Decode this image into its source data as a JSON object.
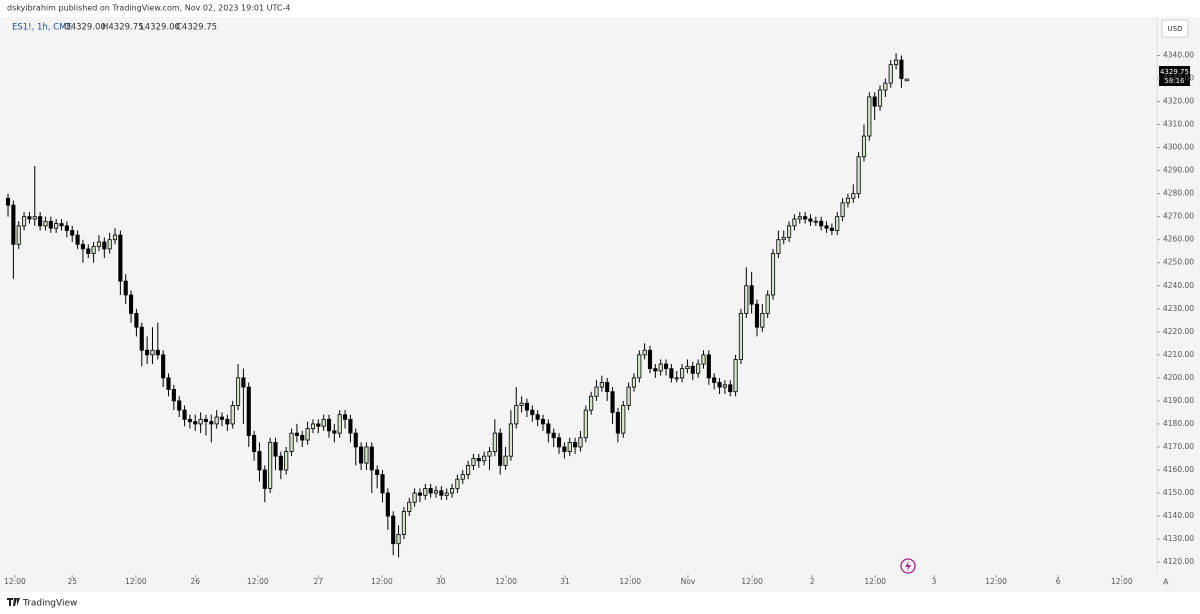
{
  "header": {
    "publisher": "dskyibrahim published on TradingView.com, Nov 02, 2023 19:01 UTC-4",
    "symbol": "ES1!, 1h, CME",
    "ohlc": [
      "O4329.00",
      "H4329.75",
      "L4329.00",
      "C4329.75"
    ],
    "currency": "USD",
    "price_tag": "4329.75",
    "countdown": "58:16"
  },
  "footer": {
    "brand": "TradingView"
  },
  "chart_data": {
    "type": "candlestick",
    "up_color": "#d3e6c7",
    "down_color": "#000000",
    "border_color": "#000000",
    "background": "#f4f4f4",
    "ylim": [
      4114.4,
      4356.7
    ],
    "yticks": [
      {
        "value": 4120,
        "label": "4120.00"
      },
      {
        "value": 4130,
        "label": "4130.00"
      },
      {
        "value": 4140,
        "label": "4140.00"
      },
      {
        "value": 4150,
        "label": "4150.00"
      },
      {
        "value": 4160,
        "label": "4160.00"
      },
      {
        "value": 4170,
        "label": "4170.00"
      },
      {
        "value": 4180,
        "label": "4180.00"
      },
      {
        "value": 4190,
        "label": "4190.00"
      },
      {
        "value": 4200,
        "label": "4200.00"
      },
      {
        "value": 4210,
        "label": "4210.00"
      },
      {
        "value": 4220,
        "label": "4220.00"
      },
      {
        "value": 4230,
        "label": "4230.00"
      },
      {
        "value": 4240,
        "label": "4240.00"
      },
      {
        "value": 4250,
        "label": "4250.00"
      },
      {
        "value": 4260,
        "label": "4260.00"
      },
      {
        "value": 4270,
        "label": "4270.00"
      },
      {
        "value": 4280,
        "label": "4280.00"
      },
      {
        "value": 4290,
        "label": "4290.00"
      },
      {
        "value": 4300,
        "label": "4300.00"
      },
      {
        "value": 4310,
        "label": "4310.00"
      },
      {
        "value": 4320,
        "label": "4320.00"
      },
      {
        "value": 4330,
        "label": "4330.00"
      },
      {
        "value": 4340,
        "label": "4340.00"
      }
    ],
    "xlim": [
      -1.5,
      214.4
    ],
    "xticks": [
      {
        "value": 1.3,
        "label": "12:00"
      },
      {
        "value": 12,
        "label": "25"
      },
      {
        "value": 23.9,
        "label": "12:00"
      },
      {
        "value": 35,
        "label": "26"
      },
      {
        "value": 46.7,
        "label": "12:00"
      },
      {
        "value": 58,
        "label": "27"
      },
      {
        "value": 69.9,
        "label": "12:00"
      },
      {
        "value": 80.9,
        "label": "30"
      },
      {
        "value": 93.1,
        "label": "12:00"
      },
      {
        "value": 104.1,
        "label": "31"
      },
      {
        "value": 116.3,
        "label": "12:00"
      },
      {
        "value": 127.1,
        "label": "Nov"
      },
      {
        "value": 139.1,
        "label": "12:00"
      },
      {
        "value": 150.3,
        "label": "2"
      },
      {
        "value": 162.1,
        "label": "12:00"
      },
      {
        "value": 173.1,
        "label": "3"
      },
      {
        "value": 184.7,
        "label": "12:00"
      },
      {
        "value": 196.3,
        "label": "6"
      },
      {
        "value": 208.2,
        "label": "12:00"
      }
    ],
    "open": [
      4278,
      4275,
      4258,
      4266,
      4270,
      4269,
      4270,
      4266,
      4268,
      4265,
      4267,
      4266,
      4264,
      4262,
      4258,
      4256,
      4254,
      4257,
      4259,
      4256,
      4260,
      4262,
      4242,
      4236,
      4228,
      4222,
      4212,
      4210,
      4212,
      4210,
      4200,
      4195,
      4190,
      4186,
      4182,
      4181,
      4180,
      4182,
      4181,
      4180,
      4183,
      4182,
      4180,
      4188,
      4200,
      4196,
      4175,
      4168,
      4160,
      4152,
      4172,
      4166,
      4160,
      4168,
      4176,
      4175,
      4173,
      4178,
      4180,
      4179,
      4182,
      4177,
      4176,
      4184,
      4182,
      4176,
      4170,
      4163,
      4170,
      4160,
      4158,
      4150,
      4140,
      4128,
      4132,
      4142,
      4146,
      4150,
      4149,
      4152,
      4150,
      4151,
      4149,
      4150,
      4152,
      4156,
      4158,
      4162,
      4165,
      4164,
      4166,
      4168,
      4176,
      4162,
      4166,
      4180,
      4188,
      4189,
      4186,
      4184,
      4182,
      4180,
      4176,
      4174,
      4170,
      4168,
      4172,
      4170,
      4174,
      4186,
      4192,
      4196,
      4198,
      4194,
      4185,
      4176,
      4188,
      4196,
      4200,
      4210,
      4212,
      4204,
      4203,
      4206,
      4204,
      4200,
      4200,
      4204,
      4205,
      4202,
      4206,
      4210,
      4200,
      4198,
      4196,
      4197,
      4194,
      4208,
      4228,
      4240,
      4232,
      4222,
      4228,
      4236,
      4254,
      4260,
      4261,
      4266,
      4269,
      4270,
      4269,
      4268,
      4268,
      4266,
      4265,
      4264,
      4270,
      4276,
      4278,
      4280,
      4296,
      4305,
      4322,
      4318,
      4325,
      4328,
      4336,
      4338,
      4329
    ],
    "high": [
      4280,
      4277,
      4268,
      4272,
      4272,
      4292,
      4272,
      4270,
      4270,
      4269,
      4269,
      4268,
      4266,
      4264,
      4260,
      4258,
      4259,
      4262,
      4261,
      4263,
      4265,
      4264,
      4245,
      4238,
      4230,
      4224,
      4218,
      4222,
      4224,
      4212,
      4202,
      4197,
      4192,
      4188,
      4184,
      4184,
      4185,
      4184,
      4184,
      4186,
      4185,
      4184,
      4190,
      4206,
      4204,
      4198,
      4177,
      4172,
      4162,
      4174,
      4174,
      4168,
      4170,
      4178,
      4180,
      4177,
      4181,
      4182,
      4182,
      4184,
      4184,
      4180,
      4186,
      4186,
      4184,
      4178,
      4172,
      4172,
      4172,
      4162,
      4160,
      4152,
      4142,
      4136,
      4144,
      4148,
      4152,
      4152,
      4154,
      4154,
      4153,
      4153,
      4152,
      4154,
      4158,
      4160,
      4164,
      4167,
      4167,
      4168,
      4170,
      4182,
      4178,
      4170,
      4186,
      4196,
      4192,
      4191,
      4188,
      4186,
      4184,
      4182,
      4178,
      4176,
      4172,
      4174,
      4174,
      4177,
      4188,
      4194,
      4199,
      4201,
      4200,
      4196,
      4187,
      4190,
      4198,
      4202,
      4212,
      4215,
      4214,
      4206,
      4208,
      4208,
      4206,
      4203,
      4206,
      4208,
      4207,
      4208,
      4212,
      4212,
      4202,
      4200,
      4199,
      4199,
      4210,
      4230,
      4248,
      4246,
      4234,
      4232,
      4238,
      4256,
      4264,
      4264,
      4268,
      4271,
      4272,
      4272,
      4271,
      4270,
      4270,
      4268,
      4267,
      4272,
      4278,
      4280,
      4284,
      4298,
      4310,
      4324,
      4324,
      4327,
      4330,
      4338,
      4341,
      4340,
      4329.75
    ],
    "low": [
      4270,
      4243,
      4256,
      4264,
      4267,
      4266,
      4264,
      4264,
      4263,
      4263,
      4264,
      4261,
      4259,
      4256,
      4250,
      4252,
      4250,
      4255,
      4252,
      4254,
      4258,
      4236,
      4232,
      4224,
      4218,
      4205,
      4206,
      4206,
      4208,
      4196,
      4192,
      4186,
      4183,
      4179,
      4178,
      4177,
      4176,
      4175,
      4172,
      4178,
      4179,
      4177,
      4178,
      4186,
      4180,
      4170,
      4164,
      4155,
      4146,
      4150,
      4160,
      4156,
      4158,
      4166,
      4172,
      4170,
      4171,
      4176,
      4176,
      4177,
      4174,
      4172,
      4174,
      4178,
      4172,
      4162,
      4160,
      4160,
      4150,
      4152,
      4146,
      4134,
      4123,
      4122,
      4130,
      4140,
      4144,
      4146,
      4147,
      4148,
      4148,
      4147,
      4147,
      4148,
      4150,
      4154,
      4156,
      4160,
      4161,
      4162,
      4160,
      4166,
      4158,
      4160,
      4164,
      4178,
      4185,
      4183,
      4181,
      4179,
      4177,
      4172,
      4170,
      4167,
      4165,
      4166,
      4167,
      4168,
      4172,
      4184,
      4190,
      4194,
      4190,
      4180,
      4172,
      4174,
      4186,
      4194,
      4198,
      4208,
      4202,
      4200,
      4201,
      4201,
      4198,
      4198,
      4198,
      4202,
      4199,
      4200,
      4204,
      4197,
      4195,
      4193,
      4193,
      4192,
      4192,
      4206,
      4226,
      4228,
      4218,
      4220,
      4226,
      4234,
      4252,
      4258,
      4259,
      4264,
      4267,
      4267,
      4266,
      4266,
      4264,
      4263,
      4262,
      4262,
      4268,
      4274,
      4276,
      4278,
      4294,
      4303,
      4312,
      4316,
      4322,
      4326,
      4334,
      4326,
      4329
    ],
    "close": [
      4275,
      4258,
      4266,
      4270,
      4269,
      4270,
      4266,
      4268,
      4265,
      4267,
      4266,
      4264,
      4262,
      4258,
      4256,
      4254,
      4257,
      4259,
      4256,
      4260,
      4262,
      4242,
      4236,
      4228,
      4222,
      4212,
      4210,
      4212,
      4210,
      4200,
      4195,
      4190,
      4186,
      4182,
      4181,
      4180,
      4182,
      4181,
      4180,
      4183,
      4182,
      4180,
      4188,
      4200,
      4196,
      4175,
      4168,
      4160,
      4152,
      4172,
      4166,
      4160,
      4168,
      4176,
      4175,
      4173,
      4178,
      4180,
      4179,
      4182,
      4177,
      4176,
      4184,
      4182,
      4176,
      4170,
      4163,
      4170,
      4160,
      4158,
      4150,
      4140,
      4128,
      4132,
      4142,
      4146,
      4150,
      4149,
      4152,
      4150,
      4151,
      4149,
      4150,
      4152,
      4156,
      4158,
      4162,
      4165,
      4164,
      4166,
      4168,
      4176,
      4162,
      4166,
      4180,
      4188,
      4189,
      4186,
      4184,
      4182,
      4180,
      4176,
      4174,
      4170,
      4168,
      4172,
      4170,
      4174,
      4186,
      4192,
      4196,
      4198,
      4194,
      4185,
      4176,
      4188,
      4196,
      4200,
      4210,
      4212,
      4204,
      4203,
      4206,
      4204,
      4200,
      4200,
      4204,
      4205,
      4202,
      4206,
      4210,
      4200,
      4198,
      4196,
      4197,
      4194,
      4208,
      4228,
      4240,
      4232,
      4222,
      4228,
      4236,
      4254,
      4260,
      4261,
      4266,
      4269,
      4270,
      4269,
      4268,
      4268,
      4266,
      4265,
      4264,
      4270,
      4276,
      4278,
      4280,
      4296,
      4305,
      4322,
      4318,
      4325,
      4328,
      4336,
      4338,
      4330,
      4329.75
    ]
  }
}
